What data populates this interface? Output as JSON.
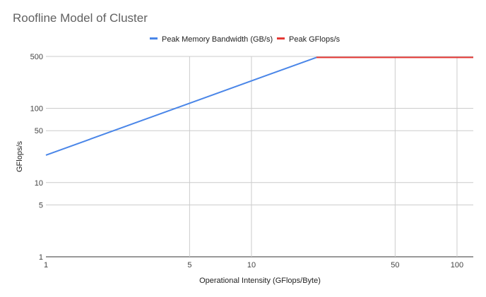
{
  "chart_data": {
    "type": "line",
    "title": "Roofline Model of Cluster",
    "xlabel": "Operational Intensity (GFlops/Byte)",
    "ylabel": "GFlops/s",
    "x_scale": "log",
    "y_scale": "log",
    "xlim": [
      1,
      120
    ],
    "ylim": [
      1,
      500
    ],
    "x_ticks": [
      1,
      5,
      10,
      50,
      100
    ],
    "x_tick_labels": [
      "1",
      "5",
      "10",
      "50",
      "100"
    ],
    "y_ticks": [
      1,
      5,
      10,
      50,
      100,
      500
    ],
    "y_tick_labels": [
      "1",
      "5",
      "10",
      "50",
      "100",
      "500"
    ],
    "grid": true,
    "legend_position": "top",
    "series": [
      {
        "name": "Peak Memory Bandwidth (GB/s)",
        "color": "#4a86e8",
        "x": [
          1,
          20.7
        ],
        "y": [
          23.4,
          485
        ]
      },
      {
        "name": "Peak GFlops/s",
        "color": "#e53935",
        "x": [
          20.7,
          120
        ],
        "y": [
          485,
          485
        ]
      }
    ]
  }
}
